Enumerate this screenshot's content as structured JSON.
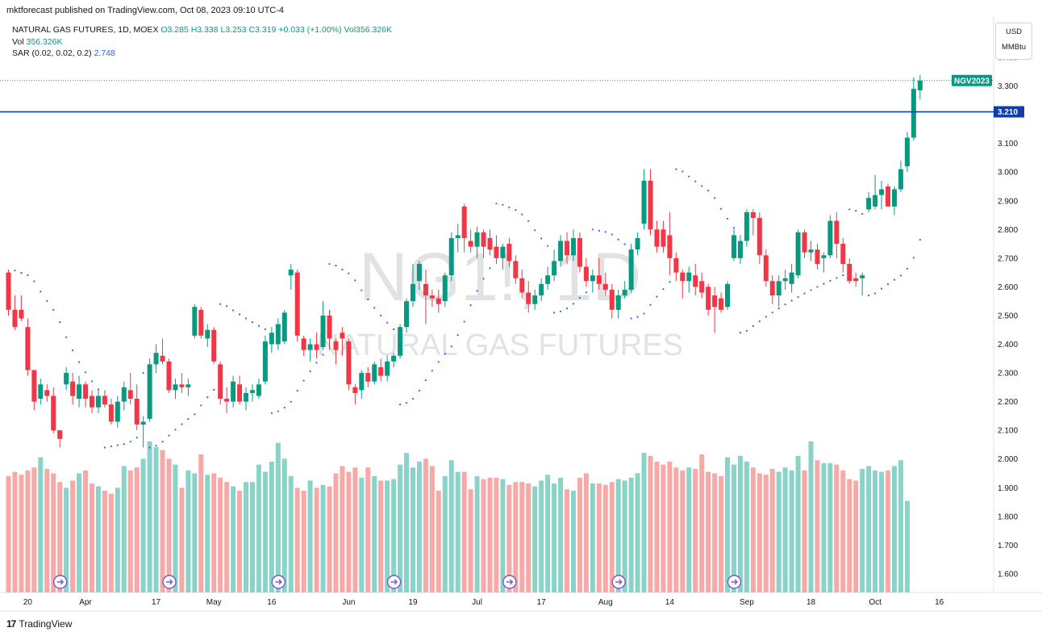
{
  "header": {
    "published": "mktforecast published on TradingView.com, Oct 08, 2023 09:10 UTC-4"
  },
  "legend": {
    "symbol": "NATURAL GAS FUTURES, 1D, MOEX",
    "ohlc": "O3.285 H3.338 L3.253 C3.319 +0.033 (+1.00%) Vol356.326K",
    "vol_label": "Vol",
    "vol_value": "356.326K",
    "sar_label": "SAR (0.02, 0.02, 0.2)",
    "sar_value": "2.748"
  },
  "units": {
    "currency": "USD",
    "unit": "MMBtu"
  },
  "watermark": {
    "symbol": "NG1!, 1D",
    "name": "NATURAL GAS FUTURES"
  },
  "footer": {
    "brand": "TradingView",
    "logo_text": "17"
  },
  "colors": {
    "up": "#089981",
    "down": "#f23645",
    "vol_up": "#8ad3c9",
    "vol_down": "#f7a9a7",
    "sar": "#2962ff",
    "hline": "#0f3ea8"
  },
  "chart_data": {
    "type": "candlestick",
    "y_range": [
      1.54,
      3.44
    ],
    "y_ticks": [
      "3.400",
      "3.300",
      "3.200",
      "3.100",
      "3.000",
      "2.900",
      "2.800",
      "2.700",
      "2.600",
      "2.500",
      "2.400",
      "2.300",
      "2.200",
      "2.100",
      "2.000",
      "1.900",
      "1.800",
      "1.700",
      "1.600"
    ],
    "x_ticks": [
      {
        "label": "20",
        "bar": 3
      },
      {
        "label": "Apr",
        "bar": 12
      },
      {
        "label": "17",
        "bar": 23
      },
      {
        "label": "May",
        "bar": 32
      },
      {
        "label": "16",
        "bar": 41
      },
      {
        "label": "Jun",
        "bar": 53
      },
      {
        "label": "19",
        "bar": 63
      },
      {
        "label": "Jul",
        "bar": 73
      },
      {
        "label": "17",
        "bar": 83
      },
      {
        "label": "Aug",
        "bar": 93
      },
      {
        "label": "14",
        "bar": 103
      },
      {
        "label": "Sep",
        "bar": 115
      },
      {
        "label": "18",
        "bar": 125
      },
      {
        "label": "Oct",
        "bar": 135
      },
      {
        "label": "16",
        "bar": 145
      }
    ],
    "horizontal_line": {
      "value": 3.21,
      "label": "3.210"
    },
    "last_price": {
      "value": 3.319,
      "label": "NGV2023",
      "price_label": "3.319"
    },
    "ohlc": [
      [
        2.65,
        2.66,
        2.5,
        2.52
      ],
      [
        2.52,
        2.57,
        2.45,
        2.46
      ],
      [
        2.52,
        2.57,
        2.48,
        2.49
      ],
      [
        2.46,
        2.49,
        2.29,
        2.31
      ],
      [
        2.31,
        2.31,
        2.17,
        2.2
      ],
      [
        2.21,
        2.28,
        2.19,
        2.26
      ],
      [
        2.24,
        2.26,
        2.2,
        2.22
      ],
      [
        2.22,
        2.25,
        2.09,
        2.1
      ],
      [
        2.1,
        2.1,
        2.04,
        2.07
      ],
      [
        2.26,
        2.32,
        2.24,
        2.3
      ],
      [
        2.27,
        2.3,
        2.19,
        2.22
      ],
      [
        2.21,
        2.29,
        2.18,
        2.26
      ],
      [
        2.26,
        2.27,
        2.18,
        2.21
      ],
      [
        2.22,
        2.24,
        2.16,
        2.18
      ],
      [
        2.18,
        2.24,
        2.16,
        2.22
      ],
      [
        2.22,
        2.24,
        2.18,
        2.19
      ],
      [
        2.19,
        2.21,
        2.12,
        2.13
      ],
      [
        2.13,
        2.22,
        2.11,
        2.2
      ],
      [
        2.2,
        2.27,
        2.17,
        2.25
      ],
      [
        2.24,
        2.3,
        2.19,
        2.21
      ],
      [
        2.21,
        2.26,
        2.1,
        2.12
      ],
      [
        2.12,
        2.15,
        2.04,
        2.13
      ],
      [
        2.14,
        2.35,
        2.13,
        2.33
      ],
      [
        2.33,
        2.4,
        2.3,
        2.37
      ],
      [
        2.36,
        2.42,
        2.33,
        2.34
      ],
      [
        2.34,
        2.35,
        2.23,
        2.24
      ],
      [
        2.24,
        2.28,
        2.21,
        2.26
      ],
      [
        2.26,
        2.3,
        2.23,
        2.25
      ],
      [
        2.25,
        2.28,
        2.22,
        2.26
      ],
      [
        2.43,
        2.54,
        2.42,
        2.53
      ],
      [
        2.52,
        2.53,
        2.42,
        2.43
      ],
      [
        2.42,
        2.47,
        2.39,
        2.45
      ],
      [
        2.45,
        2.46,
        2.33,
        2.34
      ],
      [
        2.33,
        2.34,
        2.19,
        2.21
      ],
      [
        2.21,
        2.25,
        2.16,
        2.2
      ],
      [
        2.2,
        2.29,
        2.18,
        2.27
      ],
      [
        2.26,
        2.29,
        2.19,
        2.2
      ],
      [
        2.2,
        2.25,
        2.17,
        2.23
      ],
      [
        2.23,
        2.26,
        2.2,
        2.24
      ],
      [
        2.22,
        2.28,
        2.21,
        2.26
      ],
      [
        2.27,
        2.43,
        2.26,
        2.41
      ],
      [
        2.4,
        2.46,
        2.37,
        2.44
      ],
      [
        2.4,
        2.49,
        2.38,
        2.47
      ],
      [
        2.41,
        2.52,
        2.4,
        2.51
      ],
      [
        2.64,
        2.68,
        2.59,
        2.66
      ],
      [
        2.65,
        2.66,
        2.41,
        2.43
      ],
      [
        2.42,
        2.43,
        2.36,
        2.38
      ],
      [
        2.38,
        2.42,
        2.34,
        2.4
      ],
      [
        2.4,
        2.44,
        2.35,
        2.38
      ],
      [
        2.39,
        2.55,
        2.38,
        2.5
      ],
      [
        2.5,
        2.52,
        2.38,
        2.42
      ],
      [
        2.41,
        2.42,
        2.33,
        2.38
      ],
      [
        2.44,
        2.46,
        2.36,
        2.42
      ],
      [
        2.41,
        2.42,
        2.24,
        2.26
      ],
      [
        2.25,
        2.26,
        2.19,
        2.23
      ],
      [
        2.24,
        2.31,
        2.21,
        2.3
      ],
      [
        2.3,
        2.32,
        2.25,
        2.27
      ],
      [
        2.27,
        2.34,
        2.26,
        2.33
      ],
      [
        2.32,
        2.35,
        2.27,
        2.29
      ],
      [
        2.29,
        2.36,
        2.27,
        2.34
      ],
      [
        2.34,
        2.37,
        2.32,
        2.36
      ],
      [
        2.36,
        2.47,
        2.35,
        2.46
      ],
      [
        2.46,
        2.56,
        2.44,
        2.55
      ],
      [
        2.55,
        2.68,
        2.53,
        2.61
      ],
      [
        2.62,
        2.69,
        2.59,
        2.68
      ],
      [
        2.61,
        2.66,
        2.47,
        2.57
      ],
      [
        2.57,
        2.59,
        2.53,
        2.56
      ],
      [
        2.56,
        2.59,
        2.51,
        2.54
      ],
      [
        2.55,
        2.65,
        2.53,
        2.64
      ],
      [
        2.64,
        2.79,
        2.62,
        2.77
      ],
      [
        2.77,
        2.82,
        2.72,
        2.78
      ],
      [
        2.88,
        2.89,
        2.72,
        2.77
      ],
      [
        2.76,
        2.8,
        2.72,
        2.74
      ],
      [
        2.74,
        2.81,
        2.7,
        2.79
      ],
      [
        2.79,
        2.8,
        2.7,
        2.74
      ],
      [
        2.77,
        2.8,
        2.71,
        2.73
      ],
      [
        2.74,
        2.78,
        2.68,
        2.7
      ],
      [
        2.7,
        2.75,
        2.66,
        2.74
      ],
      [
        2.75,
        2.77,
        2.67,
        2.69
      ],
      [
        2.69,
        2.71,
        2.61,
        2.63
      ],
      [
        2.63,
        2.66,
        2.56,
        2.58
      ],
      [
        2.58,
        2.62,
        2.51,
        2.54
      ],
      [
        2.54,
        2.59,
        2.52,
        2.57
      ],
      [
        2.57,
        2.63,
        2.55,
        2.61
      ],
      [
        2.61,
        2.67,
        2.59,
        2.64
      ],
      [
        2.64,
        2.73,
        2.62,
        2.69
      ],
      [
        2.69,
        2.78,
        2.67,
        2.76
      ],
      [
        2.76,
        2.79,
        2.68,
        2.71
      ],
      [
        2.71,
        2.8,
        2.69,
        2.77
      ],
      [
        2.77,
        2.79,
        2.65,
        2.67
      ],
      [
        2.67,
        2.7,
        2.6,
        2.62
      ],
      [
        2.62,
        2.66,
        2.58,
        2.64
      ],
      [
        2.64,
        2.7,
        2.59,
        2.61
      ],
      [
        2.61,
        2.65,
        2.57,
        2.59
      ],
      [
        2.59,
        2.61,
        2.49,
        2.52
      ],
      [
        2.52,
        2.59,
        2.49,
        2.57
      ],
      [
        2.57,
        2.62,
        2.56,
        2.59
      ],
      [
        2.59,
        2.75,
        2.58,
        2.73
      ],
      [
        2.73,
        2.79,
        2.71,
        2.77
      ],
      [
        2.82,
        3.01,
        2.8,
        2.97
      ],
      [
        2.97,
        3.01,
        2.78,
        2.8
      ],
      [
        2.8,
        2.83,
        2.72,
        2.74
      ],
      [
        2.8,
        2.83,
        2.72,
        2.74
      ],
      [
        2.78,
        2.86,
        2.64,
        2.7
      ],
      [
        2.7,
        2.72,
        2.62,
        2.65
      ],
      [
        2.65,
        2.66,
        2.56,
        2.62
      ],
      [
        2.62,
        2.67,
        2.58,
        2.65
      ],
      [
        2.64,
        2.68,
        2.57,
        2.6
      ],
      [
        2.62,
        2.65,
        2.56,
        2.58
      ],
      [
        2.6,
        2.61,
        2.5,
        2.52
      ],
      [
        2.57,
        2.6,
        2.44,
        2.53
      ],
      [
        2.56,
        2.58,
        2.51,
        2.52
      ],
      [
        2.53,
        2.62,
        2.52,
        2.61
      ],
      [
        2.7,
        2.8,
        2.69,
        2.78
      ],
      [
        2.7,
        2.78,
        2.68,
        2.76
      ],
      [
        2.76,
        2.87,
        2.74,
        2.86
      ],
      [
        2.86,
        2.87,
        2.78,
        2.84
      ],
      [
        2.84,
        2.86,
        2.68,
        2.71
      ],
      [
        2.71,
        2.73,
        2.6,
        2.62
      ],
      [
        2.62,
        2.64,
        2.54,
        2.57
      ],
      [
        2.57,
        2.64,
        2.53,
        2.62
      ],
      [
        2.62,
        2.66,
        2.59,
        2.63
      ],
      [
        2.61,
        2.68,
        2.58,
        2.65
      ],
      [
        2.64,
        2.8,
        2.63,
        2.79
      ],
      [
        2.79,
        2.8,
        2.7,
        2.72
      ],
      [
        2.72,
        2.76,
        2.69,
        2.73
      ],
      [
        2.73,
        2.75,
        2.66,
        2.68
      ],
      [
        2.7,
        2.72,
        2.65,
        2.71
      ],
      [
        2.71,
        2.85,
        2.7,
        2.83
      ],
      [
        2.83,
        2.86,
        2.7,
        2.75
      ],
      [
        2.75,
        2.77,
        2.65,
        2.68
      ],
      [
        2.68,
        2.7,
        2.61,
        2.62
      ],
      [
        2.63,
        2.65,
        2.6,
        2.62
      ],
      [
        2.63,
        2.65,
        2.57,
        2.64
      ],
      [
        2.87,
        2.93,
        2.86,
        2.91
      ],
      [
        2.88,
        2.99,
        2.87,
        2.92
      ],
      [
        2.92,
        2.97,
        2.87,
        2.94
      ],
      [
        2.95,
        2.96,
        2.88,
        2.88
      ],
      [
        2.88,
        2.95,
        2.85,
        2.94
      ],
      [
        2.94,
        3.04,
        2.93,
        3.01
      ],
      [
        3.02,
        3.14,
        3.0,
        3.12
      ],
      [
        3.12,
        3.33,
        3.11,
        3.29
      ],
      [
        3.285,
        3.338,
        3.253,
        3.319
      ]
    ],
    "volume": [
      0.8,
      0.83,
      0.81,
      0.84,
      0.86,
      0.93,
      0.85,
      0.82,
      0.76,
      0.72,
      0.77,
      0.82,
      0.84,
      0.75,
      0.73,
      0.7,
      0.68,
      0.72,
      0.87,
      0.84,
      0.86,
      0.92,
      1.04,
      1.0,
      0.98,
      0.92,
      0.88,
      0.72,
      0.84,
      0.82,
      0.95,
      0.81,
      0.82,
      0.79,
      0.76,
      0.73,
      0.7,
      0.76,
      0.76,
      0.88,
      0.83,
      0.9,
      1.03,
      0.92,
      0.8,
      0.72,
      0.7,
      0.77,
      0.72,
      0.74,
      0.73,
      0.82,
      0.87,
      0.83,
      0.86,
      0.79,
      0.86,
      0.8,
      0.77,
      0.77,
      0.78,
      0.88,
      0.96,
      0.86,
      0.9,
      0.92,
      0.87,
      0.7,
      0.8,
      0.91,
      0.83,
      0.83,
      0.71,
      0.8,
      0.78,
      0.79,
      0.79,
      0.78,
      0.74,
      0.76,
      0.76,
      0.75,
      0.73,
      0.77,
      0.81,
      0.75,
      0.79,
      0.71,
      0.7,
      0.79,
      0.82,
      0.75,
      0.75,
      0.74,
      0.76,
      0.78,
      0.77,
      0.79,
      0.82,
      0.96,
      0.94,
      0.9,
      0.88,
      0.9,
      0.86,
      0.84,
      0.86,
      0.85,
      0.95,
      0.83,
      0.82,
      0.8,
      0.93,
      0.88,
      0.94,
      0.9,
      0.86,
      0.82,
      0.81,
      0.85,
      0.83,
      0.86,
      0.84,
      0.94,
      0.84,
      1.04,
      0.91,
      0.89,
      0.89,
      0.88,
      0.84,
      0.78,
      0.77,
      0.85,
      0.87,
      0.84,
      0.83,
      0.84,
      0.87,
      0.91,
      0.63
    ],
    "volume_markers": [
      8,
      25,
      42,
      60,
      78,
      95,
      113
    ]
  }
}
